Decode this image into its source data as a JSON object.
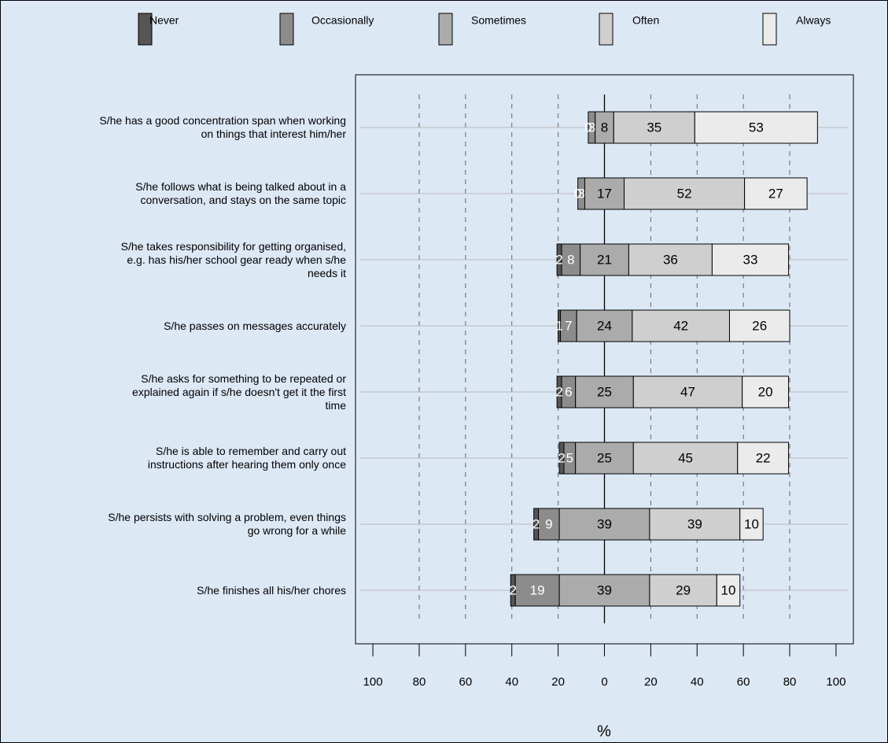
{
  "chart_data": {
    "type": "diverging_stacked_bar",
    "categories": [
      "S/he has a good concentration span when working\non things that interest him/her",
      "S/he follows what is being talked about in a\nconversation, and stays on the same topic",
      "S/he takes responsibility for getting organised,\ne.g. has his/her school gear ready when s/he\nneeds it",
      "S/he passes on messages accurately",
      "S/he asks for something to be repeated or\nexplained again if s/he doesn't get it the first\ntime",
      "S/he is able to remember and carry out\ninstructions after hearing them only once",
      "S/he persists with solving a problem, even things\ngo wrong for a while",
      "S/he finishes all his/her chores"
    ],
    "series": [
      {
        "name": "Never",
        "color": "#555555",
        "values": [
          0,
          0,
          2,
          1,
          2,
          2,
          2,
          2
        ]
      },
      {
        "name": "Occasionally",
        "color": "#8c8c8c",
        "values": [
          3,
          3,
          8,
          7,
          6,
          5,
          9,
          19
        ]
      },
      {
        "name": "Sometimes",
        "color": "#ababab",
        "values": [
          8,
          17,
          21,
          24,
          25,
          25,
          39,
          39
        ]
      },
      {
        "name": "Often",
        "color": "#cfcfcf",
        "values": [
          35,
          52,
          36,
          42,
          47,
          45,
          39,
          29
        ]
      },
      {
        "name": "Always",
        "color": "#ebebeb",
        "values": [
          53,
          27,
          33,
          26,
          20,
          22,
          10,
          10
        ]
      }
    ],
    "xlim": [
      -107.5,
      107.5
    ],
    "xticks": [
      {
        "value": -100,
        "label": "100"
      },
      {
        "value": -80,
        "label": "80"
      },
      {
        "value": -60,
        "label": "60"
      },
      {
        "value": -40,
        "label": "40"
      },
      {
        "value": -20,
        "label": "20"
      },
      0,
      20,
      40,
      60,
      80,
      100
    ],
    "xlabel": "%",
    "grid": true
  }
}
